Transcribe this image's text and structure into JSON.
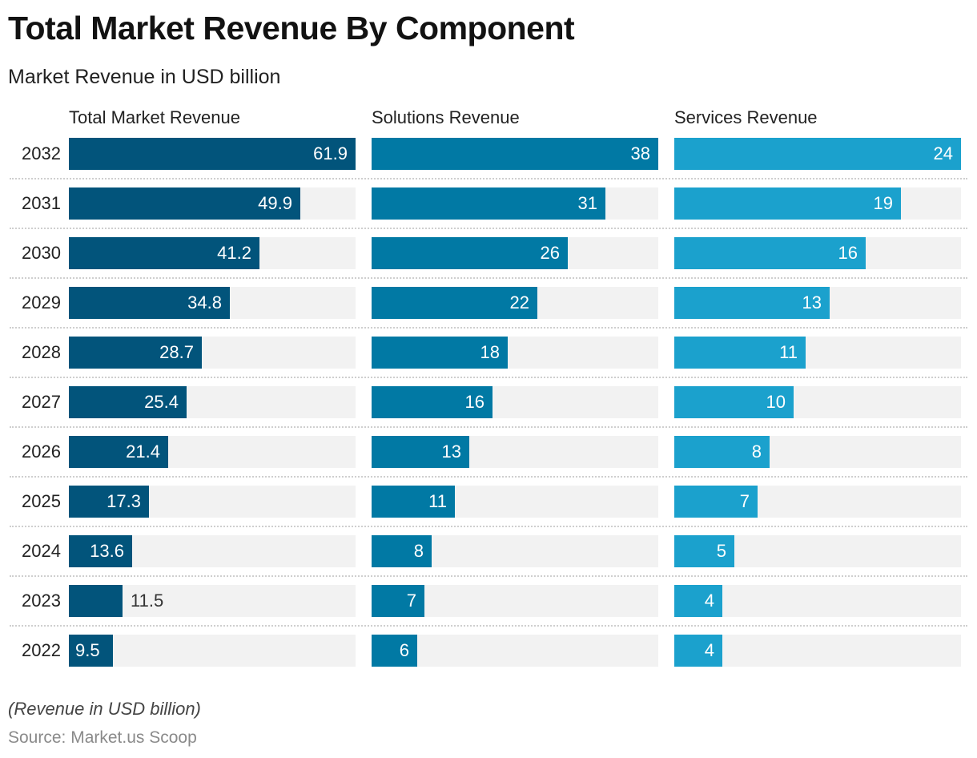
{
  "chart_data": {
    "type": "bar",
    "orientation": "horizontal",
    "title": "Total Market Revenue By Component",
    "subtitle": "Market Revenue in USD billion",
    "categories": [
      "2032",
      "2031",
      "2030",
      "2029",
      "2028",
      "2027",
      "2026",
      "2025",
      "2024",
      "2023",
      "2022"
    ],
    "series": [
      {
        "name": "Total Market Revenue",
        "color": "#02547b",
        "values": [
          61.9,
          49.9,
          41.2,
          34.8,
          28.7,
          25.4,
          21.4,
          17.3,
          13.6,
          11.5,
          9.5
        ],
        "labels": [
          "61.9",
          "49.9",
          "41.2",
          "34.8",
          "28.7",
          "25.4",
          "21.4",
          "17.3",
          "13.6",
          "11.5",
          "9.5"
        ]
      },
      {
        "name": "Solutions Revenue",
        "color": "#0179a4",
        "values": [
          38,
          31,
          26,
          22,
          18,
          16,
          13,
          11,
          8,
          7,
          6
        ],
        "labels": [
          "38",
          "31",
          "26",
          "22",
          "18",
          "16",
          "13",
          "11",
          "8",
          "7",
          "6"
        ]
      },
      {
        "name": "Services Revenue",
        "color": "#1ba1cd",
        "values": [
          24,
          19,
          16,
          13,
          11,
          10,
          8,
          7,
          5,
          4,
          4
        ],
        "labels": [
          "24",
          "19",
          "16",
          "13",
          "11",
          "10",
          "8",
          "7",
          "5",
          "4",
          "4"
        ]
      }
    ],
    "track_color": "#f2f2f2",
    "xlabel": "",
    "ylabel": "",
    "grid": false,
    "legend": "column-headers"
  },
  "footer": {
    "note": "(Revenue in USD billion)",
    "source": "Source: Market.us Scoop"
  }
}
